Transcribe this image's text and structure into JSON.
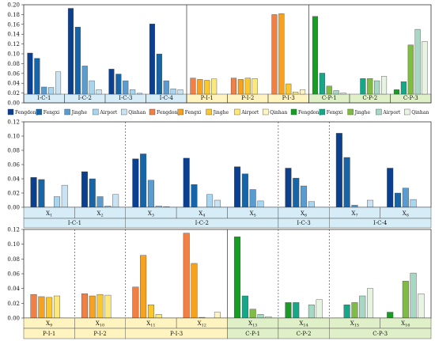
{
  "colors": {
    "I": [
      "#0b3f8f",
      "#1565a8",
      "#5a9bd0",
      "#a8d5f0",
      "#c9e3f3"
    ],
    "P": [
      "#f47f43",
      "#f7a21e",
      "#fbc72c",
      "#fde87a",
      "#fff5c4"
    ],
    "C": [
      "#179c24",
      "#12a888",
      "#7ebd42",
      "#a6d8c4",
      "#e8f4e2"
    ],
    "band_I": "#d6ecf7",
    "band_P": "#fff3bf",
    "band_C": "#dff0c8"
  },
  "chart_data": [
    {
      "type": "bar",
      "ylim": [
        0,
        0.2
      ],
      "yticks": [
        "0.00",
        "0.02",
        "0.04",
        "0.06",
        "0.08",
        "0.10",
        "0.12",
        "0.14",
        "0.16",
        "0.18",
        "0.20"
      ],
      "groups": [
        {
          "label": "I-C-1",
          "theme": "I",
          "values": [
            0.092,
            0.08,
            0.016,
            0.015,
            0.05
          ]
        },
        {
          "label": "I-C-2",
          "theme": "I",
          "values": [
            0.192,
            0.15,
            0.063,
            0.03,
            0.01
          ]
        },
        {
          "label": "I-C-3",
          "theme": "I",
          "values": [
            0.056,
            0.045,
            0.03,
            0.01,
            0.002
          ]
        },
        {
          "label": "I-C-4",
          "theme": "I",
          "values": [
            0.157,
            0.09,
            0.03,
            0.012,
            0.01
          ]
        },
        {
          "label": "P-I-1",
          "theme": "P",
          "values": [
            0.036,
            0.033,
            0.031,
            0.034,
            0.0
          ]
        },
        {
          "label": "P-I-2",
          "theme": "P",
          "values": [
            0.036,
            0.033,
            0.036,
            0.035,
            0.0
          ]
        },
        {
          "label": "P-I-3",
          "theme": "P",
          "values": [
            0.178,
            0.18,
            0.023,
            0.005,
            0.01
          ]
        },
        {
          "label": "C-P-1",
          "theme": "C",
          "values": [
            0.174,
            0.047,
            0.018,
            0.008,
            0.003
          ]
        },
        {
          "label": "C-P-2",
          "theme": "C",
          "values": [
            0.0,
            0.035,
            0.035,
            0.03,
            0.04
          ]
        },
        {
          "label": "C-P-3",
          "theme": "C",
          "values": [
            0.01,
            0.028,
            0.11,
            0.145,
            0.118
          ]
        }
      ]
    },
    {
      "type": "bar",
      "ylim": [
        0,
        0.12
      ],
      "yticks": [
        "0.00",
        "0.02",
        "0.04",
        "0.06",
        "0.08",
        "0.10",
        "0.12"
      ],
      "legend": [
        {
          "name": "Fengdong",
          "theme": "I",
          "idx": 0
        },
        {
          "name": "Fengxi",
          "theme": "I",
          "idx": 1
        },
        {
          "name": "Jinghe",
          "theme": "I",
          "idx": 2
        },
        {
          "name": "Airport",
          "theme": "I",
          "idx": 3
        },
        {
          "name": "Qinhan",
          "theme": "I",
          "idx": 4
        },
        {
          "name": "Fengdong",
          "theme": "P",
          "idx": 0
        },
        {
          "name": "Fengxi",
          "theme": "P",
          "idx": 1
        },
        {
          "name": "Jinghe",
          "theme": "P",
          "idx": 2
        },
        {
          "name": "Airport",
          "theme": "P",
          "idx": 3
        },
        {
          "name": "Qinhan",
          "theme": "P",
          "idx": 4
        },
        {
          "name": "Fengdong",
          "theme": "C",
          "idx": 0
        },
        {
          "name": "Fengxi",
          "theme": "C",
          "idx": 1
        },
        {
          "name": "Jinghe",
          "theme": "C",
          "idx": 2
        },
        {
          "name": "Airport",
          "theme": "C",
          "idx": 3
        },
        {
          "name": "Qinhan",
          "theme": "C",
          "idx": 4
        }
      ],
      "groups": [
        {
          "label": "X",
          "sub": "1",
          "theme": "I",
          "values": [
            0.042,
            0.039,
            0.0,
            0.015,
            0.031
          ]
        },
        {
          "label": "X",
          "sub": "2",
          "theme": "I",
          "values": [
            0.05,
            0.04,
            0.015,
            0.002,
            0.018
          ]
        },
        {
          "label": "X",
          "sub": "3",
          "theme": "I",
          "values": [
            0.068,
            0.075,
            0.038,
            0.002,
            0.001
          ]
        },
        {
          "label": "X",
          "sub": "4",
          "theme": "I",
          "values": [
            0.069,
            0.032,
            0.0,
            0.018,
            0.01
          ]
        },
        {
          "label": "X",
          "sub": "5",
          "theme": "I",
          "values": [
            0.057,
            0.047,
            0.025,
            0.009,
            0.0
          ]
        },
        {
          "label": "X",
          "sub": "6",
          "theme": "I",
          "values": [
            0.055,
            0.041,
            0.03,
            0.008,
            0.0
          ]
        },
        {
          "label": "X",
          "sub": "7",
          "theme": "I",
          "values": [
            0.104,
            0.07,
            0.003,
            0.0,
            0.01
          ]
        },
        {
          "label": "X",
          "sub": "8",
          "theme": "I",
          "values": [
            0.055,
            0.02,
            0.027,
            0.011,
            0.0
          ]
        }
      ],
      "bands": [
        {
          "label": "I-C-1",
          "span": [
            0,
            2
          ],
          "theme": "I"
        },
        {
          "label": "I-C-2",
          "span": [
            2,
            5
          ],
          "theme": "I"
        },
        {
          "label": "I-C-3",
          "span": [
            5,
            6
          ],
          "theme": "I"
        },
        {
          "label": "I-C-4",
          "span": [
            6,
            8
          ],
          "theme": "I"
        }
      ]
    },
    {
      "type": "bar",
      "ylim": [
        0,
        0.12
      ],
      "yticks": [
        "0.00",
        "0.02",
        "0.04",
        "0.06",
        "0.08",
        "0.10",
        "0.12"
      ],
      "groups": [
        {
          "label": "X",
          "sub": "9",
          "theme": "P",
          "values": [
            0.032,
            0.029,
            0.028,
            0.03,
            0.0
          ]
        },
        {
          "label": "X",
          "sub": "10",
          "theme": "P",
          "values": [
            0.033,
            0.03,
            0.032,
            0.031,
            0.0
          ]
        },
        {
          "label": "X",
          "sub": "11",
          "theme": "P",
          "values": [
            0.042,
            0.085,
            0.018,
            0.005,
            0.0
          ]
        },
        {
          "label": "X",
          "sub": "12",
          "theme": "P",
          "values": [
            0.115,
            0.074,
            0.001,
            0.0,
            0.008
          ]
        },
        {
          "label": "X",
          "sub": "13",
          "theme": "C",
          "values": [
            0.11,
            0.03,
            0.012,
            0.005,
            0.002
          ]
        },
        {
          "label": "X",
          "sub": "14",
          "theme": "C",
          "values": [
            0.021,
            0.021,
            0.0,
            0.018,
            0.025
          ]
        },
        {
          "label": "X",
          "sub": "15",
          "theme": "C",
          "values": [
            0.0,
            0.018,
            0.021,
            0.03,
            0.04
          ]
        },
        {
          "label": "X",
          "sub": "16",
          "theme": "C",
          "values": [
            0.008,
            0.0,
            0.05,
            0.061,
            0.033
          ]
        }
      ],
      "bands": [
        {
          "label": "P-I-1",
          "span": [
            0,
            1
          ],
          "theme": "P"
        },
        {
          "label": "P-I-2",
          "span": [
            1,
            2
          ],
          "theme": "P"
        },
        {
          "label": "P-I-3",
          "span": [
            2,
            4
          ],
          "theme": "P"
        },
        {
          "label": "C-P-1",
          "span": [
            4,
            5
          ],
          "theme": "C"
        },
        {
          "label": "C-P-2",
          "span": [
            5,
            6
          ],
          "theme": "C"
        },
        {
          "label": "C-P-3",
          "span": [
            6,
            8
          ],
          "theme": "C"
        }
      ]
    }
  ]
}
